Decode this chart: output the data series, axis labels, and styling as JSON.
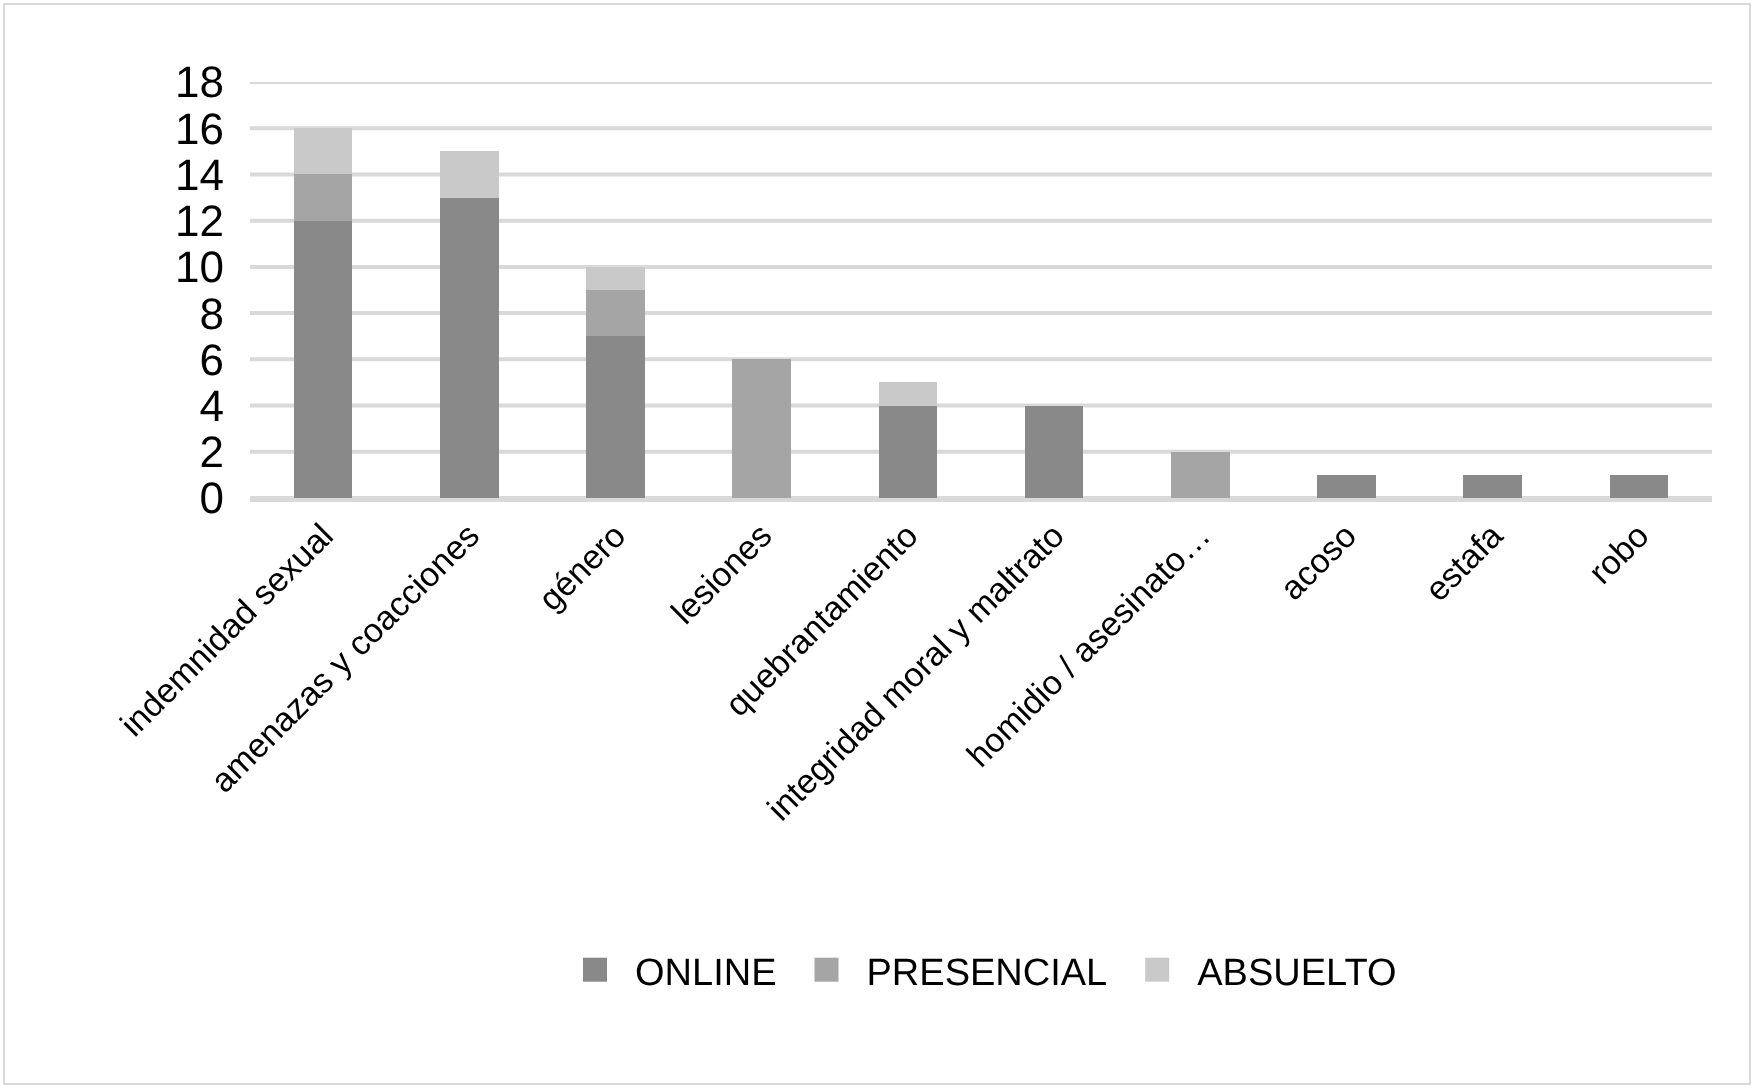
{
  "chart_data": {
    "type": "bar",
    "stacked": true,
    "categories": [
      "indemnidad sexual",
      "amenazas y coacciones",
      "género",
      "lesiones",
      "quebrantamiento",
      "integridad moral y maltrato",
      "homidio / asesinato…",
      "acoso",
      "estafa",
      "robo"
    ],
    "series": [
      {
        "name": "ONLINE",
        "color": "#898989",
        "values": [
          12,
          13,
          7,
          0,
          4,
          4,
          0,
          1,
          1,
          1
        ]
      },
      {
        "name": "PRESENCIAL",
        "color": "#a5a5a5",
        "values": [
          2,
          0,
          2,
          6,
          0,
          0,
          2,
          0,
          0,
          0
        ]
      },
      {
        "name": "ABSUELTO",
        "color": "#c9c9c9",
        "values": [
          2,
          2,
          1,
          0,
          1,
          0,
          0,
          0,
          0,
          0
        ]
      }
    ],
    "ylim": [
      0,
      18
    ],
    "yticks": [
      0,
      2,
      4,
      6,
      8,
      10,
      12,
      14,
      16,
      18
    ],
    "grid": "y",
    "legend": "bottom"
  }
}
